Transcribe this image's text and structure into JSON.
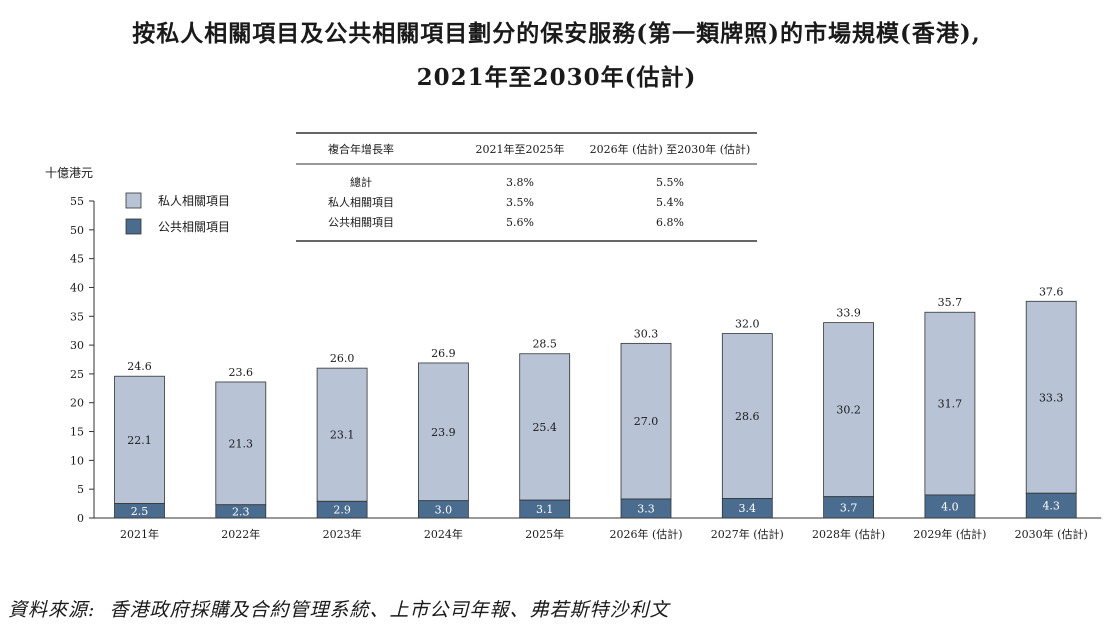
{
  "title_line1": "按私人相關項目及公共相關項目劃分的保安服務(第一類牌照)的市場規模(香港),",
  "title_line2": "2021年至2030年(估計)",
  "source": "資料來源:  香港政府採購及合約管理系統、上市公司年報、弗若斯特沙利文",
  "cagr_table": {
    "headers": [
      "複合年增長率",
      "2021年至2025年",
      "2026年 (估計) 至2030年 (估計)"
    ],
    "rows": [
      [
        "總計",
        "3.8%",
        "5.5%"
      ],
      [
        "私人相關項目",
        "3.5%",
        "5.4%"
      ],
      [
        "公共相關項目",
        "5.6%",
        "6.8%"
      ]
    ]
  },
  "chart_data": {
    "type": "bar",
    "stacked": true,
    "ylabel": "十億港元",
    "ylim": [
      0,
      55
    ],
    "yticks": [
      0,
      5,
      10,
      15,
      20,
      25,
      30,
      35,
      40,
      45,
      50,
      55
    ],
    "categories": [
      "2021年",
      "2022年",
      "2023年",
      "2024年",
      "2025年",
      "2026年 (估計)",
      "2027年 (估計)",
      "2028年 (估計)",
      "2029年 (估計)",
      "2030年 (估計)"
    ],
    "series": [
      {
        "name": "公共相關項目",
        "color": "#4a6c8f",
        "label_color": "#ffffff",
        "values": [
          2.5,
          2.3,
          2.9,
          3.0,
          3.1,
          3.3,
          3.4,
          3.7,
          4.0,
          4.3
        ]
      },
      {
        "name": "私人相關項目",
        "color": "#b8c4d6",
        "label_color": "#1a1a1a",
        "values": [
          22.1,
          21.3,
          23.1,
          23.9,
          25.4,
          27.0,
          28.6,
          30.2,
          31.7,
          33.3
        ]
      }
    ],
    "totals": [
      24.6,
      23.6,
      26.0,
      26.9,
      28.5,
      30.3,
      32.0,
      33.9,
      35.7,
      37.6
    ],
    "legend": [
      {
        "name": "私人相關項目",
        "color": "#b8c4d6"
      },
      {
        "name": "公共相關項目",
        "color": "#4a6c8f"
      }
    ],
    "legend_placement": "top-left",
    "grid": false
  }
}
